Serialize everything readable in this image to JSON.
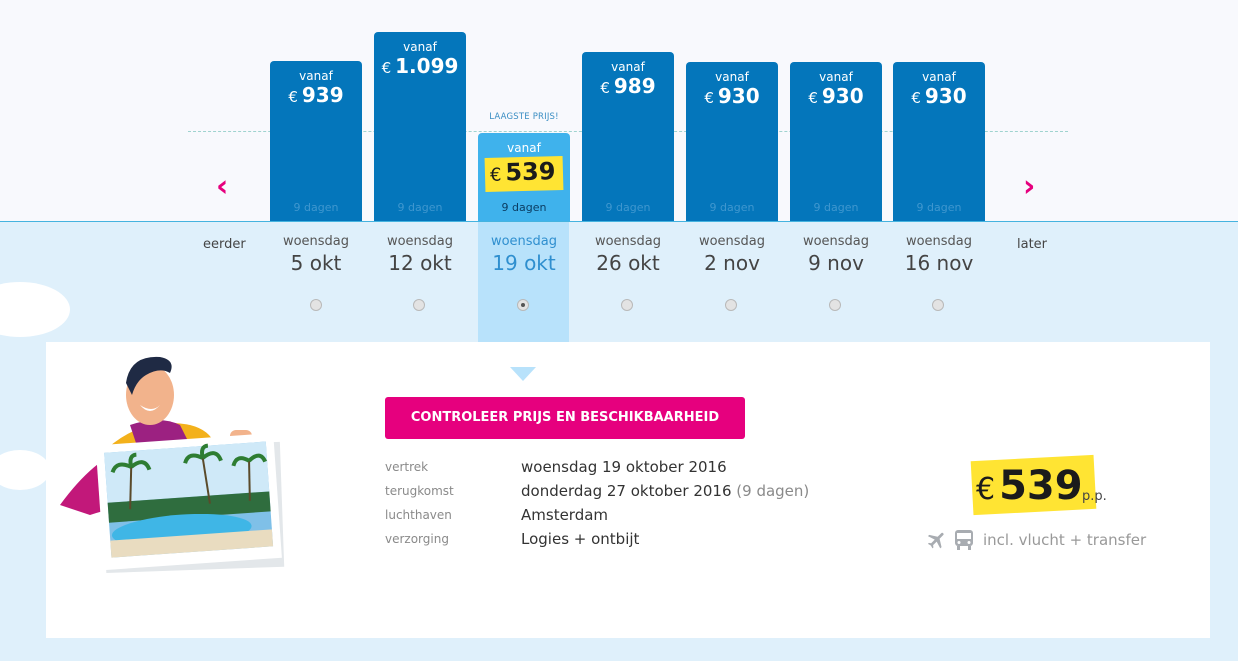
{
  "bars": [
    {
      "vanaf": "vanaf",
      "currency": "€",
      "price": "939",
      "days": "9 dagen",
      "dow": "woensdag",
      "date": "5 okt"
    },
    {
      "vanaf": "vanaf",
      "currency": "€",
      "price": "1.099",
      "days": "9 dagen",
      "dow": "woensdag",
      "date": "12 okt"
    },
    {
      "vanaf": "vanaf",
      "currency": "€",
      "price": "539",
      "days": "9 dagen",
      "dow": "woensdag",
      "date": "19 okt"
    },
    {
      "vanaf": "vanaf",
      "currency": "€",
      "price": "989",
      "days": "9 dagen",
      "dow": "woensdag",
      "date": "26 okt"
    },
    {
      "vanaf": "vanaf",
      "currency": "€",
      "price": "930",
      "days": "9 dagen",
      "dow": "woensdag",
      "date": "2 nov"
    },
    {
      "vanaf": "vanaf",
      "currency": "€",
      "price": "930",
      "days": "9 dagen",
      "dow": "woensdag",
      "date": "9 nov"
    },
    {
      "vanaf": "vanaf",
      "currency": "€",
      "price": "930",
      "days": "9 dagen",
      "dow": "woensdag",
      "date": "16 nov"
    }
  ],
  "selected_index": 2,
  "lowest_label": "LAAGSTE PRIJS!",
  "nav": {
    "earlier": "eerder",
    "later": "later",
    "prev_arrow": "‹",
    "next_arrow": "›"
  },
  "cta_label": "CONTROLEER PRIJS EN BESCHIKBAARHEID",
  "details": {
    "vertrek_label": "vertrek",
    "vertrek_value": "woensdag 19 oktober 2016",
    "terugkomst_label": "terugkomst",
    "terugkomst_value": "donderdag 27 oktober 2016",
    "terugkomst_extra": "(9 dagen)",
    "luchthaven_label": "luchthaven",
    "luchthaven_value": "Amsterdam",
    "verzorging_label": "verzorging",
    "verzorging_value": "Logies + ontbijt"
  },
  "summary": {
    "currency": "€",
    "price": "539",
    "pp": "p.p.",
    "incl": "incl. vlucht + transfer"
  },
  "icons": {
    "plane": "plane-icon",
    "bus": "bus-icon"
  },
  "colors": {
    "bar_blue": "#0476bb",
    "bar_selected": "#3fb2ec",
    "highlight_yellow": "#ffe433",
    "accent_pink": "#e6007e",
    "panel_bg": "#dff0fb"
  }
}
